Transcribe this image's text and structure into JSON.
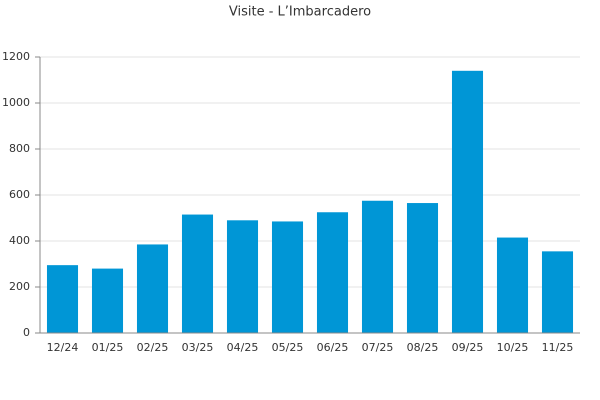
{
  "chart_data": {
    "type": "bar",
    "title": "Visite - L’Imbarcadero",
    "categories": [
      "12/24",
      "01/25",
      "02/25",
      "03/25",
      "04/25",
      "05/25",
      "06/25",
      "07/25",
      "08/25",
      "09/25",
      "10/25",
      "11/25"
    ],
    "values": [
      295,
      280,
      385,
      515,
      490,
      485,
      525,
      575,
      565,
      1140,
      415,
      355
    ],
    "color": "#0096d6",
    "ylim": [
      0,
      1200
    ],
    "yticks": [
      0,
      200,
      400,
      600,
      800,
      1000,
      1200
    ],
    "grid": true
  }
}
